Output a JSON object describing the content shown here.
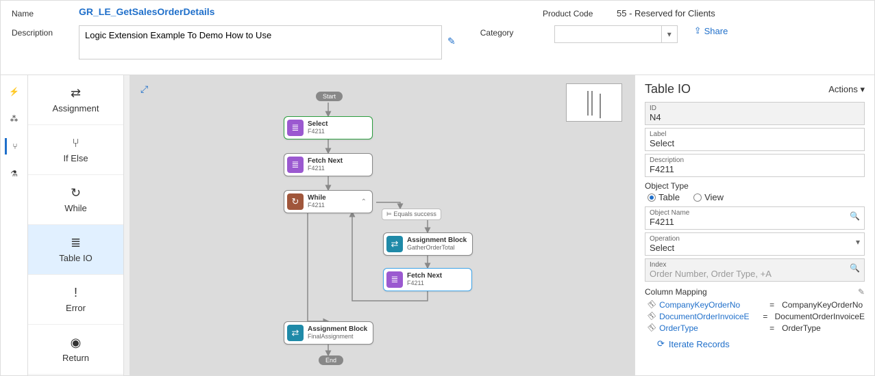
{
  "header": {
    "name_label": "Name",
    "name_value": "GR_LE_GetSalesOrderDetails",
    "description_label": "Description",
    "description_value": "Logic Extension Example To Demo How to Use",
    "product_code_label": "Product Code",
    "product_code_value": "55 - Reserved for Clients",
    "category_label": "Category",
    "share_label": "Share"
  },
  "palette": {
    "items": [
      {
        "icon": "⇄",
        "label": "Assignment"
      },
      {
        "icon": "⑂",
        "label": "If Else"
      },
      {
        "icon": "↻",
        "label": "While"
      },
      {
        "icon": "≣",
        "label": "Table IO"
      },
      {
        "icon": "!",
        "label": "Error"
      },
      {
        "icon": "◉",
        "label": "Return"
      }
    ],
    "selected_index": 3
  },
  "flow": {
    "start_label": "Start",
    "end_label": "End",
    "condition_label": "⊨ Equals success",
    "nodes": {
      "select": {
        "title": "Select",
        "sub": "F4211",
        "color": "#9b59d0",
        "glyph": "≣"
      },
      "fetch1": {
        "title": "Fetch Next",
        "sub": "F4211",
        "color": "#9b59d0",
        "glyph": "≣"
      },
      "while": {
        "title": "While",
        "sub": "F4211",
        "color": "#a0563b",
        "glyph": "↻"
      },
      "asg1": {
        "title": "Assignment Block",
        "sub": "GatherOrderTotal",
        "color": "#1f8aa8",
        "glyph": "⇄"
      },
      "fetch2": {
        "title": "Fetch Next",
        "sub": "F4211",
        "color": "#9b59d0",
        "glyph": "≣"
      },
      "asg2": {
        "title": "Assignment Block",
        "sub": "FinalAssignment",
        "color": "#1f8aa8",
        "glyph": "⇄"
      }
    }
  },
  "rpanel": {
    "title": "Table IO",
    "actions_label": "Actions",
    "id_label": "ID",
    "id_value": "N4",
    "label_label": "Label",
    "label_value": "Select",
    "desc_label": "Description",
    "desc_value": "F4211",
    "objtype_label": "Object Type",
    "objtype_opts": {
      "table": "Table",
      "view": "View"
    },
    "objtype_selected": "table",
    "objname_label": "Object Name",
    "objname_value": "F4211",
    "operation_label": "Operation",
    "operation_value": "Select",
    "index_label": "Index",
    "index_placeholder": "Order Number, Order Type, +A",
    "colmap_label": "Column Mapping",
    "mappings": [
      {
        "left": "CompanyKeyOrderNo",
        "right": "CompanyKeyOrderNo"
      },
      {
        "left": "DocumentOrderInvoiceE",
        "right": "DocumentOrderInvoiceE"
      },
      {
        "left": "OrderType",
        "right": "OrderType"
      }
    ],
    "iterate_label": "Iterate Records"
  }
}
